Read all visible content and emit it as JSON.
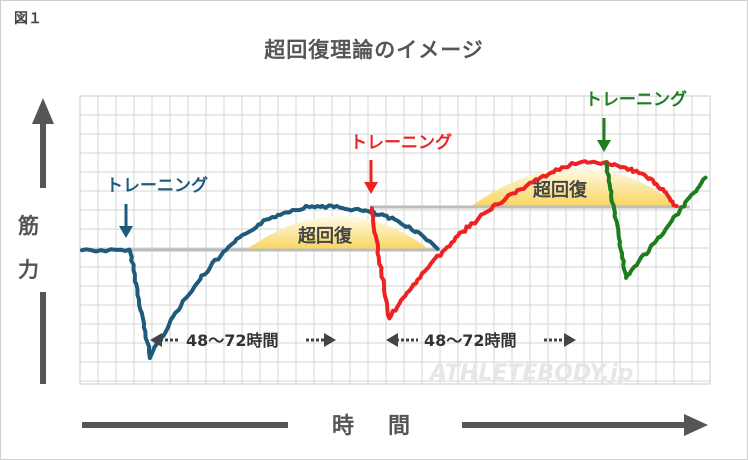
{
  "figure_label": "図１",
  "title": "超回復理論のイメージ",
  "y_label_chars": [
    "筋",
    "力"
  ],
  "x_label": "時　間",
  "annotations": {
    "training_1": "トレーニング",
    "training_2": "トレーニング",
    "training_3": "トレーニング",
    "recovery_1": "超回復",
    "recovery_2": "超回復",
    "interval_1": "48〜72時間",
    "interval_2": "48〜72時間"
  },
  "watermark": "ATHLETEBODY.jp",
  "colors": {
    "curve_1": "#1f5a7a",
    "curve_2": "#ee2222",
    "curve_3": "#1e7d1e",
    "label_1": "#1f5a7a",
    "label_2": "#ee2222",
    "label_3": "#1e7d1e",
    "baseline": "#bbbbbb",
    "recovery_fill": "#f9d56a",
    "axis_arrow": "#555555",
    "grid": "#d4d4d4"
  },
  "icons": [
    "up-arrow-icon",
    "right-arrow-icon",
    "down-arrow-icon",
    "double-arrow-icon"
  ]
}
